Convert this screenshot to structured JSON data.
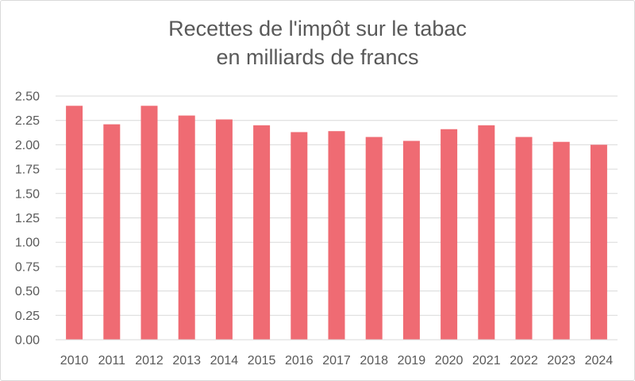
{
  "chart_data": {
    "type": "bar",
    "title": [
      "Recettes de l'impôt sur le tabac",
      "en milliards de francs"
    ],
    "categories": [
      "2010",
      "2011",
      "2012",
      "2013",
      "2014",
      "2015",
      "2016",
      "2017",
      "2018",
      "2019",
      "2020",
      "2021",
      "2022",
      "2023",
      "2024"
    ],
    "values": [
      2.4,
      2.21,
      2.4,
      2.3,
      2.26,
      2.2,
      2.13,
      2.14,
      2.08,
      2.04,
      2.16,
      2.2,
      2.08,
      2.03,
      2.0
    ],
    "ylim": [
      0,
      2.5
    ],
    "yticks": [
      "0.00",
      "0.25",
      "0.50",
      "0.75",
      "1.00",
      "1.25",
      "1.50",
      "1.75",
      "2.00",
      "2.25",
      "2.50"
    ],
    "grid": true,
    "bar_color": "#ef6b73",
    "grid_color": "#d9d9d9"
  }
}
